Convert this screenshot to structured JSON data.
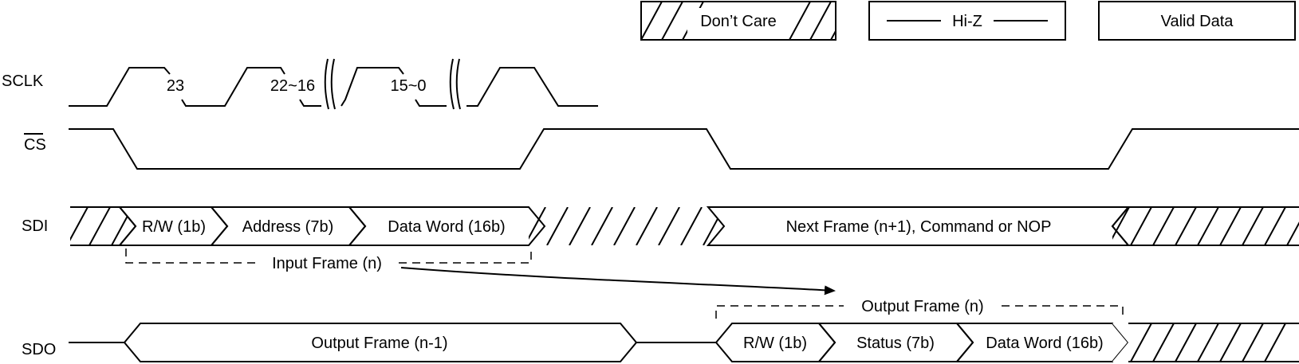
{
  "legend": {
    "dont_care": "Don’t Care",
    "hi_z": "Hi-Z",
    "valid_data": "Valid Data"
  },
  "signals": {
    "sclk": "SCLK",
    "cs": "CS",
    "sdi": "SDI",
    "sdo": "SDO"
  },
  "sclk_labels": {
    "first": "23",
    "second": "22~16",
    "third": "15~0"
  },
  "sdi_fields": {
    "rw": "R/W (1b)",
    "address": "Address (7b)",
    "data_word": "Data Word (16b)",
    "next_frame": "Next Frame (n+1), Command or NOP"
  },
  "sdo_fields": {
    "prev_frame": "Output Frame (n-1)",
    "rw": "R/W (1b)",
    "status": "Status (7b)",
    "data_word": "Data Word (16b)"
  },
  "frame_labels": {
    "input": "Input Frame (n)",
    "output": "Output Frame (n)"
  }
}
